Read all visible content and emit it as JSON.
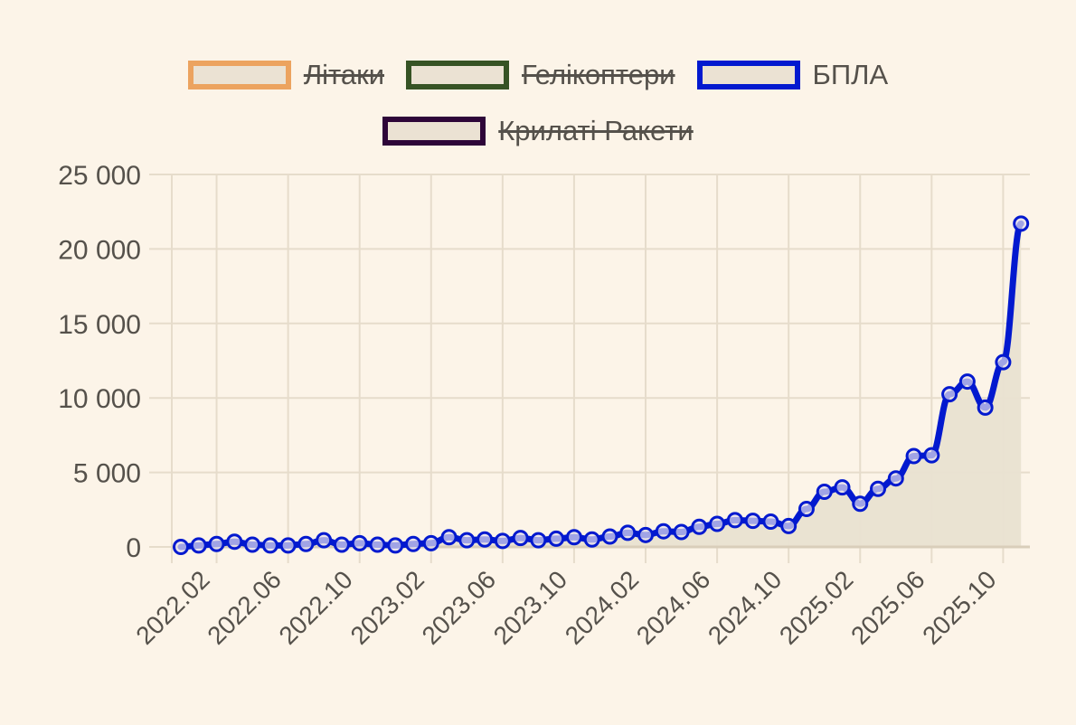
{
  "legend": {
    "rows": [
      [
        {
          "label": "Літаки",
          "color": "#eca35f",
          "hidden": true
        },
        {
          "label": "Гелікоптери",
          "color": "#365324",
          "hidden": true
        },
        {
          "label": "БПЛА",
          "color": "#0219cf",
          "hidden": false
        }
      ],
      [
        {
          "label": "Крилаті Ракети",
          "color": "#2e0639",
          "hidden": true
        }
      ]
    ]
  },
  "colors": {
    "background": "#fcf4e8",
    "grid": "#e6dccb",
    "area_fill": "#e9e1d1",
    "line": "#0219cf",
    "text": "#55514b"
  },
  "chart_data": {
    "type": "line",
    "title": "",
    "xlabel": "",
    "ylabel": "",
    "ylim": [
      0,
      25000
    ],
    "yticks": [
      "0",
      "5 000",
      "10 000",
      "15 000",
      "20 000",
      "25 000"
    ],
    "xtick_labels": [
      "2022.02",
      "2022.06",
      "2022.10",
      "2023.02",
      "2023.06",
      "2023.10",
      "2024.02",
      "2024.06",
      "2024.10",
      "2025.02",
      "2025.06",
      "2025.10"
    ],
    "grid": true,
    "legend_position": "top",
    "categories": [
      "2021.12",
      "2022.01",
      "2022.02",
      "2022.03",
      "2022.04",
      "2022.05",
      "2022.06",
      "2022.07",
      "2022.08",
      "2022.09",
      "2022.10",
      "2022.11",
      "2022.12",
      "2023.01",
      "2023.02",
      "2023.03",
      "2023.04",
      "2023.05",
      "2023.06",
      "2023.07",
      "2023.08",
      "2023.09",
      "2023.10",
      "2023.11",
      "2023.12",
      "2024.01",
      "2024.02",
      "2024.03",
      "2024.04",
      "2024.05",
      "2024.06",
      "2024.07",
      "2024.08",
      "2024.09",
      "2024.10",
      "2024.11",
      "2024.12",
      "2025.01",
      "2025.02",
      "2025.03",
      "2025.04",
      "2025.05",
      "2025.06",
      "2025.07",
      "2025.08",
      "2025.09",
      "2025.10",
      "2025.11"
    ],
    "series": [
      {
        "name": "Літаки",
        "hidden": true,
        "values": []
      },
      {
        "name": "Гелікоптери",
        "hidden": true,
        "values": []
      },
      {
        "name": "БПЛА",
        "hidden": false,
        "values": [
          0,
          100,
          200,
          350,
          150,
          100,
          100,
          200,
          450,
          150,
          250,
          150,
          100,
          200,
          250,
          650,
          450,
          500,
          400,
          600,
          450,
          550,
          650,
          500,
          700,
          950,
          800,
          1050,
          1000,
          1350,
          1550,
          1800,
          1750,
          1700,
          1400,
          2550,
          3700,
          4000,
          2900,
          3900,
          4600,
          6100,
          6150,
          10250,
          11100,
          9350,
          12400,
          21700
        ]
      },
      {
        "name": "Крилаті Ракети",
        "hidden": true,
        "values": []
      }
    ]
  }
}
